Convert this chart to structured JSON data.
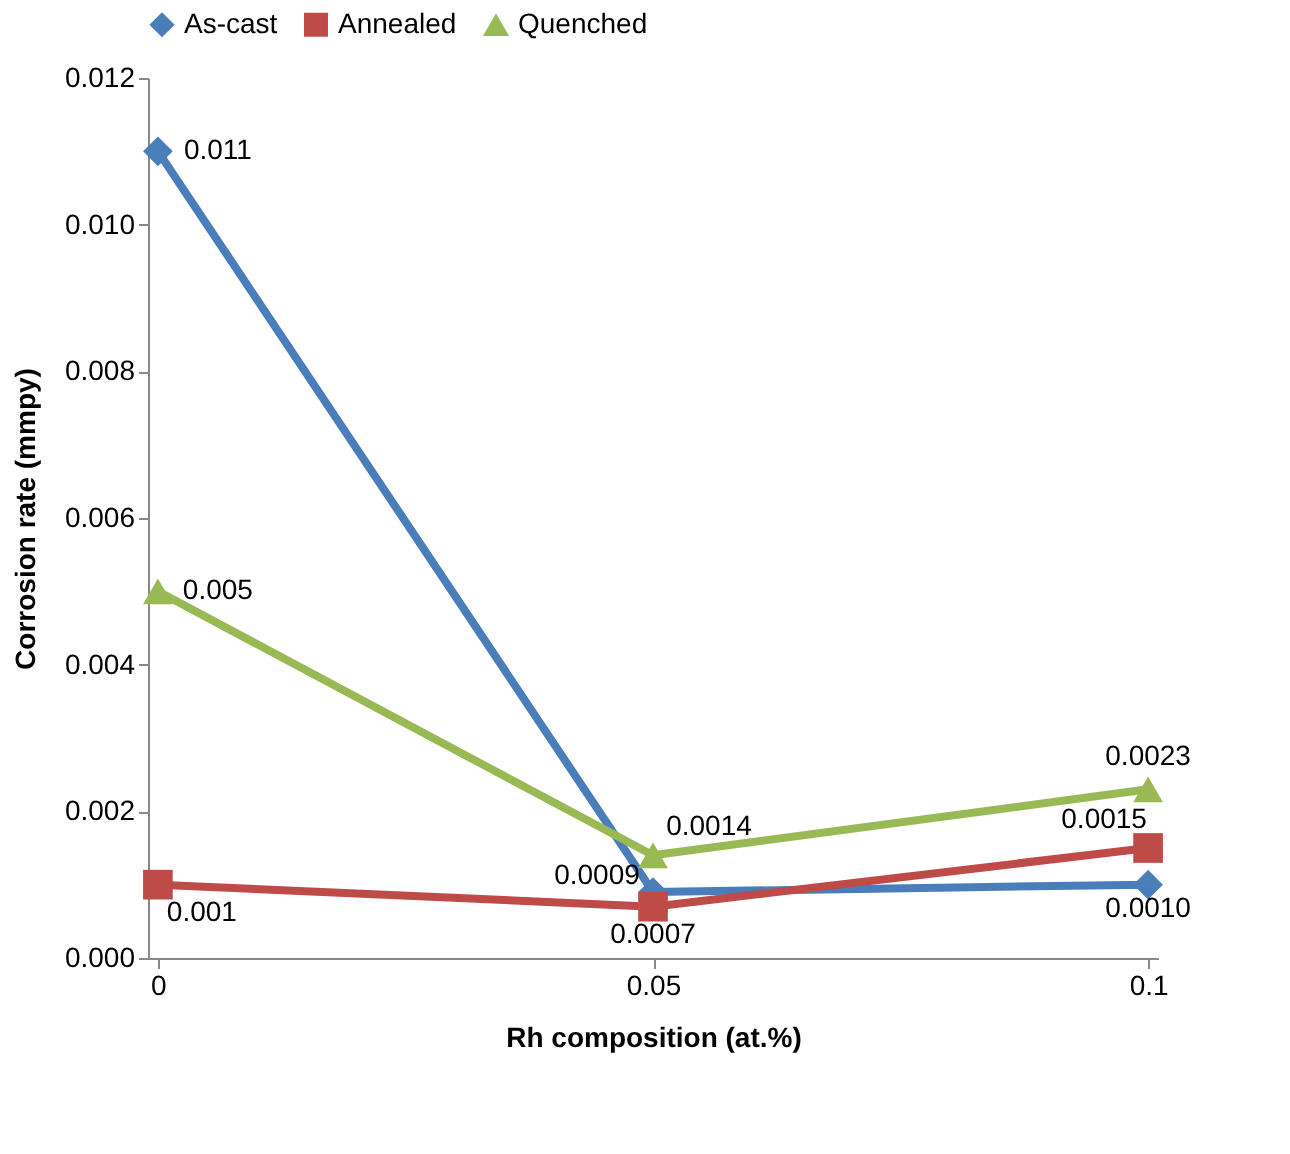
{
  "chart_data": {
    "type": "line",
    "xlabel": "Rh composition (at.%)",
    "ylabel": "Corrosion rate (mmpy)",
    "categories": [
      "0",
      "0.05",
      "0.1"
    ],
    "ylim": [
      0,
      0.012
    ],
    "yticks": [
      {
        "value": 0,
        "label": "0.000"
      },
      {
        "value": 0.002,
        "label": "0.002"
      },
      {
        "value": 0.004,
        "label": "0.004"
      },
      {
        "value": 0.006,
        "label": "0.006"
      },
      {
        "value": 0.008,
        "label": "0.008"
      },
      {
        "value": 0.01,
        "label": "0.010"
      },
      {
        "value": 0.012,
        "label": "0.012"
      }
    ],
    "grid": false,
    "legend": "top",
    "line_style": "solid",
    "series": [
      {
        "name": "As-cast",
        "color": "#4a7ebb",
        "marker": "diamond",
        "values": [
          0.011,
          0.0009,
          0.001
        ],
        "value_labels": [
          "0.011",
          "0.0009",
          "0.0010"
        ]
      },
      {
        "name": "Annealed",
        "color": "#be4b48",
        "marker": "square",
        "values": [
          0.001,
          0.0007,
          0.0015
        ],
        "value_labels": [
          "0.001",
          "0.0007",
          "0.0015"
        ]
      },
      {
        "name": "Quenched",
        "color": "#98b954",
        "marker": "triangle",
        "values": [
          0.005,
          0.0014,
          0.0023
        ],
        "value_labels": [
          "0.005",
          "0.0014",
          "0.0023"
        ]
      }
    ]
  }
}
